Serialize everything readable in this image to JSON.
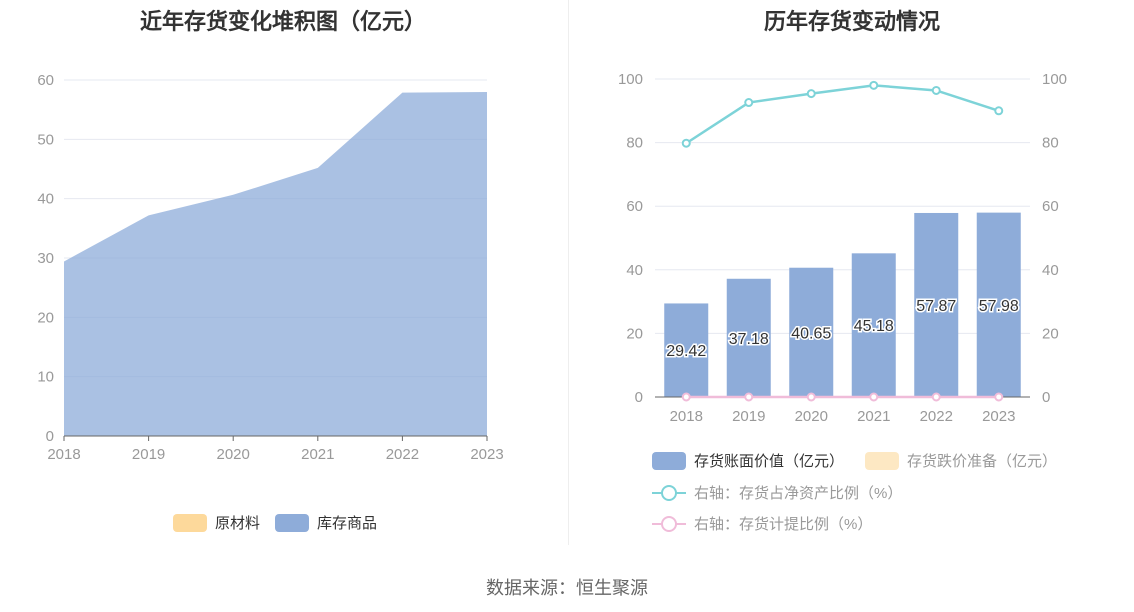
{
  "source": "数据来源：恒生聚源",
  "chart_data": [
    {
      "type": "area",
      "title": "近年存货变化堆积图（亿元）",
      "x": [
        "2018",
        "2019",
        "2020",
        "2021",
        "2022",
        "2023"
      ],
      "ylim": [
        0,
        60
      ],
      "yticks": [
        0,
        10,
        20,
        30,
        40,
        50,
        60
      ],
      "grid": true,
      "legend_position": "bottom",
      "series": [
        {
          "name": "原材料",
          "color": "#fdd99b",
          "values": [
            0,
            0,
            0,
            0,
            0,
            0
          ]
        },
        {
          "name": "库存商品",
          "color": "#8eacd9",
          "values": [
            29.42,
            37.18,
            40.65,
            45.18,
            57.87,
            57.98
          ]
        }
      ]
    },
    {
      "type": "bar",
      "title": "历年存货变动情况",
      "categories": [
        "2018",
        "2019",
        "2020",
        "2021",
        "2022",
        "2023"
      ],
      "ylim_left": [
        0,
        100
      ],
      "ylim_right": [
        0,
        100
      ],
      "yticks": [
        0,
        20,
        40,
        60,
        80,
        100
      ],
      "grid": true,
      "legend_position": "bottom",
      "series": [
        {
          "name": "存货账面价值（亿元）",
          "kind": "bar",
          "axis": "left",
          "color": "#8eacd9",
          "values": [
            29.42,
            37.18,
            40.65,
            45.18,
            57.87,
            57.98
          ],
          "labels": [
            "29.42",
            "37.18",
            "40.65",
            "45.18",
            "57.87",
            "57.98"
          ]
        },
        {
          "name": "存货跌价准备（亿元）",
          "kind": "bar",
          "axis": "left",
          "color": "#fde8c3",
          "values": [
            0,
            0,
            0,
            0,
            0,
            0
          ]
        },
        {
          "name": "右轴：存货占净资产比例（%）",
          "kind": "line",
          "axis": "right",
          "color": "#7dd3d8",
          "values": [
            79.8,
            92.6,
            95.4,
            98.0,
            96.4,
            90.0
          ]
        },
        {
          "name": "右轴：存货计提比例（%）",
          "kind": "line",
          "axis": "right",
          "color": "#f0bcd9",
          "values": [
            0,
            0,
            0,
            0,
            0,
            0
          ]
        }
      ]
    }
  ]
}
